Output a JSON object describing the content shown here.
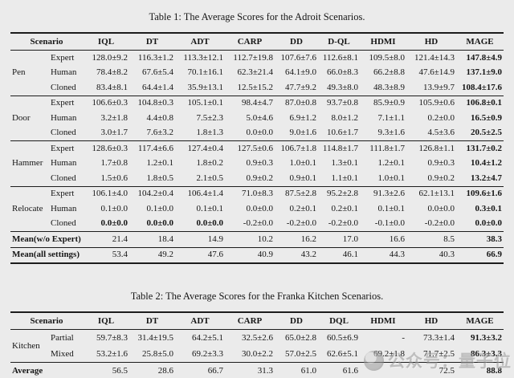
{
  "page": {
    "background": "#ebebeb",
    "text_color": "#161616",
    "rule_color": "#1c1c1c"
  },
  "tables": [
    {
      "caption": "Table 1: The Average Scores for the Adroit Scenarios.",
      "scenario_header": "Scenario",
      "method_headers": [
        "IQL",
        "DT",
        "ADT",
        "CARP",
        "DD",
        "D-QL",
        "HDMI",
        "HD",
        "MAGE"
      ],
      "groups": [
        {
          "name": "Pen",
          "rows": [
            {
              "setting": "Expert",
              "values": [
                "128.0±9.2",
                "116.3±1.2",
                "113.3±12.1",
                "112.7±19.8",
                "107.6±7.6",
                "112.6±8.1",
                "109.5±8.0",
                "121.4±14.3",
                "147.8±4.9"
              ],
              "bold": [
                8
              ]
            },
            {
              "setting": "Human",
              "values": [
                "78.4±8.2",
                "67.6±5.4",
                "70.1±16.1",
                "62.3±21.4",
                "64.1±9.0",
                "66.0±8.3",
                "66.2±8.8",
                "47.6±14.9",
                "137.1±9.0"
              ],
              "bold": [
                8
              ]
            },
            {
              "setting": "Cloned",
              "values": [
                "83.4±8.1",
                "64.4±1.4",
                "35.9±13.1",
                "12.5±15.2",
                "47.7±9.2",
                "49.3±8.0",
                "48.3±8.9",
                "13.9±9.7",
                "108.4±17.6"
              ],
              "bold": [
                8
              ]
            }
          ]
        },
        {
          "name": "Door",
          "rows": [
            {
              "setting": "Expert",
              "values": [
                "106.6±0.3",
                "104.8±0.3",
                "105.1±0.1",
                "98.4±4.7",
                "87.0±0.8",
                "93.7±0.8",
                "85.9±0.9",
                "105.9±0.6",
                "106.8±0.1"
              ],
              "bold": [
                8
              ]
            },
            {
              "setting": "Human",
              "values": [
                "3.2±1.8",
                "4.4±0.8",
                "7.5±2.3",
                "5.0±4.6",
                "6.9±1.2",
                "8.0±1.2",
                "7.1±1.1",
                "0.2±0.0",
                "16.5±0.9"
              ],
              "bold": [
                8
              ]
            },
            {
              "setting": "Cloned",
              "values": [
                "3.0±1.7",
                "7.6±3.2",
                "1.8±1.3",
                "0.0±0.0",
                "9.0±1.6",
                "10.6±1.7",
                "9.3±1.6",
                "4.5±3.6",
                "20.5±2.5"
              ],
              "bold": [
                8
              ]
            }
          ]
        },
        {
          "name": "Hammer",
          "rows": [
            {
              "setting": "Expert",
              "values": [
                "128.6±0.3",
                "117.4±6.6",
                "127.4±0.4",
                "127.5±0.6",
                "106.7±1.8",
                "114.8±1.7",
                "111.8±1.7",
                "126.8±1.1",
                "131.7±0.2"
              ],
              "bold": [
                8
              ]
            },
            {
              "setting": "Human",
              "values": [
                "1.7±0.8",
                "1.2±0.1",
                "1.8±0.2",
                "0.9±0.3",
                "1.0±0.1",
                "1.3±0.1",
                "1.2±0.1",
                "0.9±0.3",
                "10.4±1.2"
              ],
              "bold": [
                8
              ]
            },
            {
              "setting": "Cloned",
              "values": [
                "1.5±0.6",
                "1.8±0.5",
                "2.1±0.5",
                "0.9±0.2",
                "0.9±0.1",
                "1.1±0.1",
                "1.0±0.1",
                "0.9±0.2",
                "13.2±4.7"
              ],
              "bold": [
                8
              ]
            }
          ]
        },
        {
          "name": "Relocate",
          "rows": [
            {
              "setting": "Expert",
              "values": [
                "106.1±4.0",
                "104.2±0.4",
                "106.4±1.4",
                "71.0±8.3",
                "87.5±2.8",
                "95.2±2.8",
                "91.3±2.6",
                "62.1±13.1",
                "109.6±1.6"
              ],
              "bold": [
                8
              ]
            },
            {
              "setting": "Human",
              "values": [
                "0.1±0.0",
                "0.1±0.0",
                "0.1±0.1",
                "0.0±0.0",
                "0.2±0.1",
                "0.2±0.1",
                "0.1±0.1",
                "0.0±0.0",
                "0.3±0.1"
              ],
              "bold": [
                8
              ]
            },
            {
              "setting": "Cloned",
              "values": [
                "0.0±0.0",
                "0.0±0.0",
                "0.0±0.0",
                "-0.2±0.0",
                "-0.2±0.0",
                "-0.2±0.0",
                "-0.1±0.0",
                "-0.2±0.0",
                "0.0±0.0"
              ],
              "bold": [
                0,
                1,
                2,
                8
              ]
            }
          ]
        }
      ],
      "summary_rows": [
        {
          "label": "Mean(w/o Expert)",
          "values": [
            "21.4",
            "18.4",
            "14.9",
            "10.2",
            "16.2",
            "17.0",
            "16.6",
            "8.5",
            "38.3"
          ],
          "bold": [
            8
          ]
        },
        {
          "label": "Mean(all settings)",
          "values": [
            "53.4",
            "49.2",
            "47.6",
            "40.9",
            "43.2",
            "46.1",
            "44.3",
            "40.3",
            "66.9"
          ],
          "bold": [
            8
          ]
        }
      ]
    },
    {
      "caption": "Table 2: The Average Scores for the Franka Kitchen Scenarios.",
      "scenario_header": "Scenario",
      "method_headers": [
        "IQL",
        "DT",
        "ADT",
        "CARP",
        "DD",
        "DQL",
        "HDMI",
        "HD",
        "MAGE"
      ],
      "groups": [
        {
          "name": "Kitchen",
          "rows": [
            {
              "setting": "Partial",
              "values": [
                "59.7±8.3",
                "31.4±19.5",
                "64.2±5.1",
                "32.5±2.6",
                "65.0±2.8",
                "60.5±6.9",
                "-",
                "73.3±1.4",
                "91.3±3.2"
              ],
              "bold": [
                8
              ]
            },
            {
              "setting": "Mixed",
              "values": [
                "53.2±1.6",
                "25.8±5.0",
                "69.2±3.3",
                "30.0±2.2",
                "57.0±2.5",
                "62.6±5.1",
                "69.2±1.8",
                "71.7±2.5",
                "86.3±3.3"
              ],
              "bold": [
                8
              ]
            }
          ]
        }
      ],
      "summary_rows": [
        {
          "label": "Average",
          "values": [
            "56.5",
            "28.6",
            "66.7",
            "31.3",
            "61.0",
            "61.6",
            "",
            "72.5",
            "88.8"
          ],
          "bold": [
            8
          ]
        }
      ]
    }
  ],
  "watermark": {
    "text": "公众号：量子位",
    "icon": "qbitai-logo"
  }
}
